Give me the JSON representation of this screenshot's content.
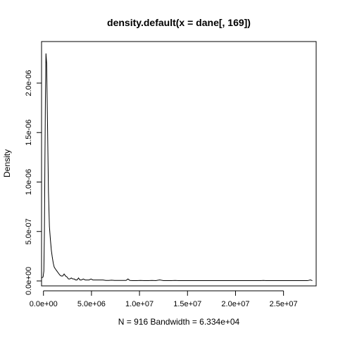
{
  "chart_data": {
    "type": "line",
    "title": "density.default(x = dane[, 169])",
    "xlabel": "N = 916   Bandwidth = 6.334e+04",
    "ylabel": "Density",
    "xlim": [
      -200000,
      28400000
    ],
    "ylim": [
      -5e-08,
      2.42e-06
    ],
    "x_ticks": [
      {
        "value": 0,
        "label": "0.0e+00"
      },
      {
        "value": 5000000,
        "label": "5.0e+06"
      },
      {
        "value": 10000000,
        "label": "1.0e+07"
      },
      {
        "value": 15000000,
        "label": "1.5e+07"
      },
      {
        "value": 20000000,
        "label": "2.0e+07"
      },
      {
        "value": 25000000,
        "label": "2.5e+07"
      }
    ],
    "y_ticks": [
      {
        "value": 0,
        "label": "0.0e+00"
      },
      {
        "value": 5e-07,
        "label": "5.0e-07"
      },
      {
        "value": 1e-06,
        "label": "1.0e-06"
      },
      {
        "value": 1.5e-06,
        "label": "1.5e-06"
      },
      {
        "value": 2e-06,
        "label": "2.0e-06"
      }
    ],
    "grid": false,
    "series": [
      {
        "values_x": [
          -190000,
          -40000,
          40000,
          100000,
          150000,
          200000,
          260000,
          330000,
          420000,
          520000,
          620000,
          720000,
          820000,
          920000,
          1020000,
          1120000,
          1250000,
          1400000,
          1550000,
          1700000,
          1850000,
          2000000,
          2150000,
          2300000,
          2450000,
          2600000,
          2750000,
          2900000,
          3050000,
          3200000,
          3350000,
          3500000,
          3650000,
          3800000,
          3950000,
          4150000,
          4350000,
          4550000,
          4750000,
          4950000,
          5150000,
          5350000,
          5550000,
          5750000,
          5950000,
          6200000,
          6500000,
          6800000,
          7100000,
          7400000,
          7700000,
          8000000,
          8300000,
          8600000,
          8800000,
          9000000,
          9300000,
          9700000,
          10100000,
          10500000,
          10900000,
          11300000,
          11700000,
          12100000,
          12500000,
          12900000,
          13300000,
          13700000,
          14100000,
          14500000,
          14900000,
          15300000,
          15700000,
          16100000,
          16500000,
          16900000,
          17300000,
          17700000,
          18100000,
          18500000,
          18900000,
          19300000,
          19700000,
          20100000,
          20600000,
          21100000,
          21600000,
          22100000,
          22600000,
          22900000,
          23200000,
          23600000,
          24100000,
          24600000,
          25100000,
          25600000,
          26100000,
          26600000,
          27100000,
          27500000,
          27800000,
          28000000
        ],
        "values_y": [
          3e-08,
          4e-08,
          1e-07,
          5e-07,
          1.2e-06,
          1.8e-06,
          2.3e-06,
          2.2e-06,
          1.6e-06,
          9e-07,
          5.5e-07,
          4.2e-07,
          3.1e-07,
          2.4e-07,
          1.8e-07,
          1.4e-07,
          1.2e-07,
          1e-07,
          8e-08,
          6e-08,
          5e-08,
          5e-08,
          7e-08,
          5e-08,
          4e-08,
          2e-08,
          2e-08,
          3e-08,
          2e-08,
          2e-08,
          1e-08,
          1e-08,
          3e-08,
          1e-08,
          1e-08,
          2e-08,
          1e-08,
          1e-08,
          1e-08,
          2e-08,
          1e-08,
          1e-08,
          1e-08,
          1e-08,
          1e-08,
          1e-08,
          5e-09,
          5e-09,
          8e-09,
          5e-09,
          5e-09,
          5e-09,
          5e-09,
          5e-09,
          2e-08,
          5e-09,
          3e-09,
          3e-09,
          5e-09,
          3e-09,
          3e-09,
          5e-09,
          3e-09,
          1e-08,
          3e-09,
          3e-09,
          3e-09,
          5e-09,
          3e-09,
          3e-09,
          3e-09,
          3e-09,
          3e-09,
          3e-09,
          3e-09,
          3e-09,
          3e-09,
          3e-09,
          3e-09,
          3e-09,
          3e-09,
          3e-09,
          3e-09,
          3e-09,
          3e-09,
          3e-09,
          3e-09,
          3e-09,
          3e-09,
          5e-09,
          3e-09,
          3e-09,
          3e-09,
          3e-09,
          3e-09,
          3e-09,
          3e-09,
          3e-09,
          3e-09,
          3e-09,
          1e-08,
          3e-09
        ],
        "color": "#000000"
      }
    ]
  }
}
